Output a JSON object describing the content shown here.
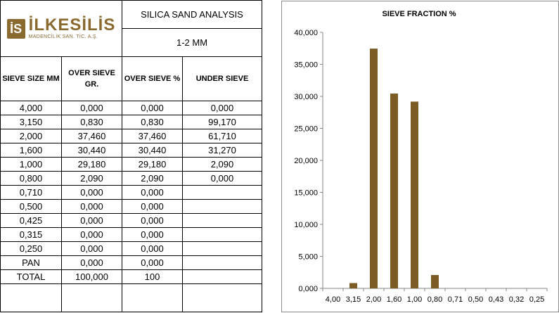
{
  "brand": {
    "logo_mark": "İS",
    "name": "İLKESİLİS",
    "subtitle": "MADENCİLİK SAN. TİC. A.Ş."
  },
  "table": {
    "title": "SILICA SAND ANALYSIS",
    "range": "1-2 MM",
    "headers": [
      "SIEVE SIZE MM",
      "OVER SIEVE GR.",
      "OVER SIEVE %",
      "UNDER SIEVE"
    ],
    "rows": [
      [
        "4,000",
        "0,000",
        "0,000",
        "0,000"
      ],
      [
        "3,150",
        "0,830",
        "0,830",
        "99,170"
      ],
      [
        "2,000",
        "37,460",
        "37,460",
        "61,710"
      ],
      [
        "1,600",
        "30,440",
        "30,440",
        "31,270"
      ],
      [
        "1,000",
        "29,180",
        "29,180",
        "2,090"
      ],
      [
        "0,800",
        "2,090",
        "2,090",
        "0,000"
      ],
      [
        "0,710",
        "0,000",
        "0,000",
        ""
      ],
      [
        "0,500",
        "0,000",
        "0,000",
        ""
      ],
      [
        "0,425",
        "0,000",
        "0,000",
        ""
      ],
      [
        "0,315",
        "0,000",
        "0,000",
        ""
      ],
      [
        "0,250",
        "0,000",
        "0,000",
        ""
      ],
      [
        "PAN",
        "0,000",
        "0,000",
        ""
      ],
      [
        "TOTAL",
        "100,000",
        "100",
        ""
      ]
    ]
  },
  "chart_data": {
    "type": "bar",
    "title": "SIEVE FRACTION %",
    "categories": [
      "4,00",
      "3,15",
      "2,00",
      "1,60",
      "1,00",
      "0,80",
      "0,71",
      "0,50",
      "0,43",
      "0,32",
      "0,25"
    ],
    "values": [
      0,
      0.83,
      37.46,
      30.44,
      29.18,
      2.09,
      0,
      0,
      0,
      0,
      0
    ],
    "ylim": [
      0,
      40
    ],
    "yticks": [
      "0,000",
      "5,000",
      "10,000",
      "15,000",
      "20,000",
      "25,000",
      "30,000",
      "35,000",
      "40,000"
    ],
    "grid": false,
    "legend": "none",
    "bar_color": "#7b5c24"
  }
}
